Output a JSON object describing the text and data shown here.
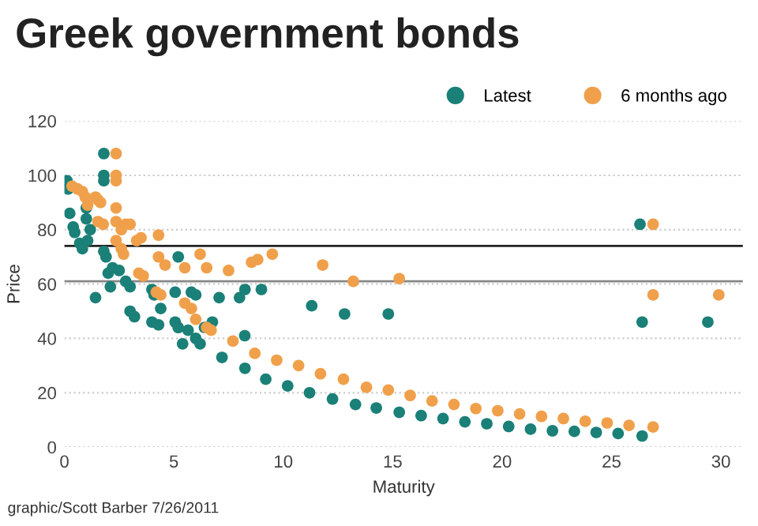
{
  "chart_data": {
    "type": "scatter",
    "title": "Greek government bonds",
    "xlabel": "Maturity",
    "ylabel": "Price",
    "xlim": [
      0,
      31
    ],
    "xticks": [
      0,
      5,
      10,
      15,
      20,
      25,
      30
    ],
    "ylim": [
      0,
      120
    ],
    "yticks": [
      0,
      20,
      40,
      60,
      80,
      100,
      120
    ],
    "grid": "y",
    "legend": "top right",
    "marker": "circle",
    "ref_lines": [
      {
        "axis": "y",
        "value": 74,
        "color": "#222222"
      },
      {
        "axis": "y",
        "value": 61,
        "color": "#888888"
      }
    ],
    "annotations": [
      "graphic/Scott Barber 7/26/2011"
    ],
    "series": [
      {
        "name": "Latest",
        "color": "#1a8078",
        "x": [
          0.12,
          0.17,
          0.24,
          0.4,
          0.47,
          0.7,
          0.82,
          1.06,
          1.0,
          1.0,
          1.18,
          1.42,
          1.8,
          1.8,
          1.8,
          1.8,
          1.9,
          2.0,
          2.1,
          2.2,
          2.5,
          2.8,
          3.0,
          3.0,
          3.2,
          4.0,
          4.1,
          4.4,
          4.0,
          4.3,
          5.06,
          5.2,
          5.06,
          5.2,
          5.4,
          5.65,
          5.8,
          6.0,
          6.0,
          6.2,
          6.4,
          6.76,
          7.07,
          7.2,
          8.0,
          8.25,
          8.25,
          8.24,
          9.0,
          9.2,
          10.2,
          11.2,
          11.3,
          12.25,
          12.8,
          13.3,
          14.25,
          14.8,
          15.3,
          16.3,
          17.3,
          18.3,
          19.3,
          20.3,
          21.3,
          22.3,
          23.3,
          24.3,
          25.3,
          26.4,
          26.3,
          26.4,
          29.4
        ],
        "values": [
          98,
          95,
          86,
          81,
          79,
          75,
          73,
          76,
          84,
          88,
          80,
          55,
          108,
          100,
          98,
          72,
          70,
          64,
          59,
          66,
          65,
          61,
          59,
          50,
          48,
          58,
          56,
          51,
          46,
          45,
          46,
          44,
          57,
          70,
          38,
          43,
          57,
          56,
          40,
          38,
          44,
          46,
          55,
          33,
          55,
          58,
          29,
          41,
          58,
          25,
          22.5,
          20,
          52,
          17.7,
          49,
          15.7,
          14.4,
          49,
          12.8,
          11.6,
          10.5,
          9.3,
          8.6,
          7.6,
          6.6,
          6,
          5.8,
          5.4,
          5,
          4.1,
          82,
          46,
          46
        ]
      },
      {
        "name": "6 months ago",
        "color": "#f0a04b",
        "x": [
          0.35,
          0.6,
          0.82,
          0.95,
          1.06,
          1.42,
          1.53,
          1.65,
          1.53,
          1.77,
          2.36,
          2.36,
          2.36,
          2.36,
          2.36,
          2.6,
          2.8,
          3.0,
          2.36,
          2.6,
          2.7,
          3.3,
          3.5,
          3.4,
          3.6,
          4.3,
          4.3,
          4.6,
          4.2,
          4.4,
          5.5,
          6.2,
          6.5,
          5.5,
          5.8,
          6.0,
          6.5,
          6.7,
          7.5,
          7.7,
          8.7,
          8.55,
          8.83,
          9.5,
          9.7,
          10.7,
          11.7,
          11.8,
          12.75,
          13.2,
          13.8,
          14.8,
          15.3,
          15.8,
          16.8,
          17.8,
          18.8,
          19.8,
          20.8,
          21.8,
          22.8,
          23.8,
          24.8,
          25.8,
          26.9,
          26.9,
          26.9,
          29.9
        ],
        "values": [
          96,
          95,
          94,
          92,
          89,
          92,
          91,
          90,
          83,
          82,
          108,
          100,
          98,
          88,
          83,
          80,
          82,
          82,
          76,
          73,
          71,
          76,
          77,
          64,
          63,
          78,
          70,
          67,
          57,
          56,
          66,
          71,
          66,
          53,
          51,
          47,
          44,
          43,
          65,
          39,
          34.5,
          68,
          69,
          71,
          32,
          30,
          27,
          67,
          25,
          61,
          22,
          21,
          62,
          19,
          17,
          15.7,
          14.2,
          13.4,
          12.2,
          11.3,
          10.5,
          9.5,
          8.9,
          8,
          7.4,
          82,
          56,
          56
        ]
      }
    ]
  }
}
